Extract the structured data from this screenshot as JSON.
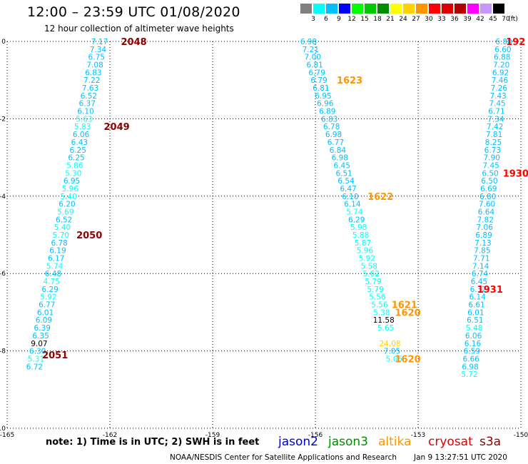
{
  "header": {
    "title": "12:00 – 23:59 UTC 01/08/2020",
    "subtitle": "12 hour collection of altimeter wave heights"
  },
  "colorbar": {
    "unit": "(ft)",
    "cells": [
      {
        "label": "3",
        "color": "#808080"
      },
      {
        "label": "6",
        "color": "#00ffff"
      },
      {
        "label": "9",
        "color": "#00bfff"
      },
      {
        "label": "12",
        "color": "#0000ff"
      },
      {
        "label": "15",
        "color": "#00ff00"
      },
      {
        "label": "18",
        "color": "#00c800"
      },
      {
        "label": "21",
        "color": "#008c00"
      },
      {
        "label": "24",
        "color": "#ffff00"
      },
      {
        "label": "27",
        "color": "#ffd200"
      },
      {
        "label": "30",
        "color": "#ff9600"
      },
      {
        "label": "33",
        "color": "#ff0000"
      },
      {
        "label": "36",
        "color": "#dc0000"
      },
      {
        "label": "39",
        "color": "#b40000"
      },
      {
        "label": "42",
        "color": "#ff00ff"
      },
      {
        "label": "45",
        "color": "#c896ff"
      },
      {
        "label": "70",
        "color": "#000000"
      }
    ]
  },
  "chart_data": {
    "type": "scatter",
    "title": "12:00 – 23:59 UTC 01/08/2020",
    "subtitle": "12 hour collection of altimeter wave heights",
    "xlim": [
      -165,
      -150
    ],
    "ylim": [
      -10,
      0
    ],
    "x_ticks": [
      "-165",
      "-162",
      "-159",
      "-156",
      "-153",
      "-150"
    ],
    "y_ticks": [
      "0",
      "-2",
      "-4",
      "-6",
      "-8",
      "-10"
    ],
    "grid": true,
    "tracks": [
      {
        "name": "track-west",
        "lon_start": -162.3,
        "lon_end": -164.2,
        "points": [
          {
            "lat": 0.0,
            "v": "7.17"
          },
          {
            "lat": -0.2,
            "v": "7.34"
          },
          {
            "lat": -0.4,
            "v": "6.75"
          },
          {
            "lat": -0.6,
            "v": "7.08"
          },
          {
            "lat": -0.8,
            "v": "6.83"
          },
          {
            "lat": -1.0,
            "v": "7.22"
          },
          {
            "lat": -1.2,
            "v": "7.63"
          },
          {
            "lat": -1.4,
            "v": "6.52"
          },
          {
            "lat": -1.6,
            "v": "6.37"
          },
          {
            "lat": -1.8,
            "v": "6.10"
          },
          {
            "lat": -2.0,
            "v": "5.63"
          },
          {
            "lat": -2.2,
            "v": "5.83"
          },
          {
            "lat": -2.4,
            "v": "6.06"
          },
          {
            "lat": -2.6,
            "v": "6.43"
          },
          {
            "lat": -2.8,
            "v": "6.25"
          },
          {
            "lat": -3.0,
            "v": "6.25"
          },
          {
            "lat": -3.2,
            "v": "5.86"
          },
          {
            "lat": -3.4,
            "v": "5.30"
          },
          {
            "lat": -3.6,
            "v": "6.95"
          },
          {
            "lat": -3.8,
            "v": "5.96"
          },
          {
            "lat": -4.0,
            "v": "5.40"
          },
          {
            "lat": -4.2,
            "v": "6.20"
          },
          {
            "lat": -4.4,
            "v": "5.69"
          },
          {
            "lat": -4.6,
            "v": "6.52"
          },
          {
            "lat": -4.8,
            "v": "5.40"
          },
          {
            "lat": -5.0,
            "v": "5.70"
          },
          {
            "lat": -5.2,
            "v": "6.78"
          },
          {
            "lat": -5.4,
            "v": "6.19"
          },
          {
            "lat": -5.6,
            "v": "6.17"
          },
          {
            "lat": -5.8,
            "v": "5.74"
          },
          {
            "lat": -6.0,
            "v": "6.48"
          },
          {
            "lat": -6.2,
            "v": "4.75"
          },
          {
            "lat": -6.4,
            "v": "6.29"
          },
          {
            "lat": -6.6,
            "v": "5.92"
          },
          {
            "lat": -6.8,
            "v": "6.77"
          },
          {
            "lat": -7.0,
            "v": "6.01"
          },
          {
            "lat": -7.2,
            "v": "6.09"
          },
          {
            "lat": -7.4,
            "v": "6.39"
          },
          {
            "lat": -7.6,
            "v": "6.35"
          },
          {
            "lat": -7.8,
            "v": "9.07"
          },
          {
            "lat": -8.0,
            "v": "6.30"
          },
          {
            "lat": -8.2,
            "v": "5.31"
          },
          {
            "lat": -8.4,
            "v": "6.72"
          }
        ],
        "time_labels": [
          {
            "lat": 0.0,
            "t": "2048",
            "lon": -161.3,
            "color": "#8b0000"
          },
          {
            "lat": -2.2,
            "t": "2049",
            "lon": -161.8,
            "color": "#8b0000"
          },
          {
            "lat": -5.0,
            "t": "2050",
            "lon": -162.6,
            "color": "#8b0000"
          },
          {
            "lat": -8.1,
            "t": "2051",
            "lon": -163.6,
            "color": "#8b0000"
          }
        ]
      },
      {
        "name": "track-middle",
        "lon_start": -156.2,
        "lon_end": -153.7,
        "points": [
          {
            "lat": 0.0,
            "v": "6.98"
          },
          {
            "lat": -0.2,
            "v": "7.21"
          },
          {
            "lat": -0.4,
            "v": "7.00"
          },
          {
            "lat": -0.6,
            "v": "6.81"
          },
          {
            "lat": -0.8,
            "v": "6.79"
          },
          {
            "lat": -1.0,
            "v": "6.79"
          },
          {
            "lat": -1.2,
            "v": "6.81"
          },
          {
            "lat": -1.4,
            "v": "6.95"
          },
          {
            "lat": -1.6,
            "v": "6.96"
          },
          {
            "lat": -1.8,
            "v": "6.89"
          },
          {
            "lat": -2.0,
            "v": "6.83"
          },
          {
            "lat": -2.2,
            "v": "6.78"
          },
          {
            "lat": -2.4,
            "v": "6.98"
          },
          {
            "lat": -2.6,
            "v": "6.77"
          },
          {
            "lat": -2.8,
            "v": "6.84"
          },
          {
            "lat": -3.0,
            "v": "6.98"
          },
          {
            "lat": -3.2,
            "v": "6.45"
          },
          {
            "lat": -3.4,
            "v": "6.51"
          },
          {
            "lat": -3.6,
            "v": "6.54"
          },
          {
            "lat": -3.8,
            "v": "6.47"
          },
          {
            "lat": -4.0,
            "v": "6.10"
          },
          {
            "lat": -4.2,
            "v": "6.14"
          },
          {
            "lat": -4.4,
            "v": "5.74"
          },
          {
            "lat": -4.6,
            "v": "6.29"
          },
          {
            "lat": -4.8,
            "v": "5.98"
          },
          {
            "lat": -5.0,
            "v": "5.88"
          },
          {
            "lat": -5.2,
            "v": "5.87"
          },
          {
            "lat": -5.4,
            "v": "5.96"
          },
          {
            "lat": -5.6,
            "v": "5.92"
          },
          {
            "lat": -5.8,
            "v": "5.58"
          },
          {
            "lat": -6.0,
            "v": "5.62"
          },
          {
            "lat": -6.2,
            "v": "5.79"
          },
          {
            "lat": -6.4,
            "v": "5.79"
          },
          {
            "lat": -6.6,
            "v": "5.56"
          },
          {
            "lat": -6.8,
            "v": "5.56"
          },
          {
            "lat": -7.0,
            "v": "5.38"
          },
          {
            "lat": -7.2,
            "v": "11.58"
          },
          {
            "lat": -7.4,
            "v": "5.65"
          },
          {
            "lat": -7.6,
            "v": ""
          },
          {
            "lat": -7.8,
            "v": "24.08"
          },
          {
            "lat": -8.0,
            "v": "7.05"
          },
          {
            "lat": -8.2,
            "v": "5.06"
          }
        ],
        "time_labels": [
          {
            "lat": -1.0,
            "t": "1623",
            "lon": -155.0,
            "color": "#ff9600"
          },
          {
            "lat": -4.0,
            "t": "1622",
            "lon": -154.1,
            "color": "#ff9600"
          },
          {
            "lat": -6.8,
            "t": "1621",
            "lon": -153.4,
            "color": "#ff9600"
          },
          {
            "lat": -7.0,
            "t": "1620",
            "lon": -153.3,
            "color": "#ff9600"
          },
          {
            "lat": -8.2,
            "t": "1620",
            "lon": -153.3,
            "color": "#ff9600"
          }
        ]
      },
      {
        "name": "track-east",
        "lon_start": -150.5,
        "lon_end": -151.5,
        "points": [
          {
            "lat": 0.0,
            "v": "6.80"
          },
          {
            "lat": -0.2,
            "v": "6.60"
          },
          {
            "lat": -0.4,
            "v": "6.88"
          },
          {
            "lat": -0.6,
            "v": "7.20"
          },
          {
            "lat": -0.8,
            "v": "6.92"
          },
          {
            "lat": -1.0,
            "v": "7.46"
          },
          {
            "lat": -1.2,
            "v": "7.26"
          },
          {
            "lat": -1.4,
            "v": "7.43"
          },
          {
            "lat": -1.6,
            "v": "7.45"
          },
          {
            "lat": -1.8,
            "v": "6.71"
          },
          {
            "lat": -2.0,
            "v": "7.34"
          },
          {
            "lat": -2.2,
            "v": "7.42"
          },
          {
            "lat": -2.4,
            "v": "7.81"
          },
          {
            "lat": -2.6,
            "v": "8.25"
          },
          {
            "lat": -2.8,
            "v": "6.73"
          },
          {
            "lat": -3.0,
            "v": "7.90"
          },
          {
            "lat": -3.2,
            "v": "7.45"
          },
          {
            "lat": -3.4,
            "v": "6.50"
          },
          {
            "lat": -3.6,
            "v": "6.50"
          },
          {
            "lat": -3.8,
            "v": "6.69"
          },
          {
            "lat": -4.0,
            "v": "6.80"
          },
          {
            "lat": -4.2,
            "v": "7.60"
          },
          {
            "lat": -4.4,
            "v": "6.64"
          },
          {
            "lat": -4.6,
            "v": "7.82"
          },
          {
            "lat": -4.8,
            "v": "7.06"
          },
          {
            "lat": -5.0,
            "v": "6.89"
          },
          {
            "lat": -5.2,
            "v": "7.13"
          },
          {
            "lat": -5.4,
            "v": "7.85"
          },
          {
            "lat": -5.6,
            "v": "7.71"
          },
          {
            "lat": -5.8,
            "v": "7.14"
          },
          {
            "lat": -6.0,
            "v": "6.74"
          },
          {
            "lat": -6.2,
            "v": "6.45"
          },
          {
            "lat": -6.4,
            "v": "6.32"
          },
          {
            "lat": -6.6,
            "v": "6.14"
          },
          {
            "lat": -6.8,
            "v": "6.61"
          },
          {
            "lat": -7.0,
            "v": "6.01"
          },
          {
            "lat": -7.2,
            "v": "6.51"
          },
          {
            "lat": -7.4,
            "v": "5.48"
          },
          {
            "lat": -7.6,
            "v": "6.06"
          },
          {
            "lat": -7.8,
            "v": "6.16"
          },
          {
            "lat": -8.0,
            "v": "6.59"
          },
          {
            "lat": -8.2,
            "v": "6.66"
          },
          {
            "lat": -8.4,
            "v": "6.98"
          },
          {
            "lat": -8.6,
            "v": "5.72"
          }
        ],
        "time_labels": [
          {
            "lat": 0.0,
            "t": "192",
            "lon": -150.15,
            "color": "#ff0000"
          },
          {
            "lat": -3.4,
            "t": "1930",
            "lon": -150.15,
            "color": "#ff0000"
          },
          {
            "lat": -6.4,
            "t": "1931",
            "lon": -150.9,
            "color": "#ff0000"
          }
        ]
      }
    ]
  },
  "footer": {
    "note": "note: 1) Time is in UTC; 2) SWH is in feet",
    "legend": [
      {
        "label": "jason2",
        "color": "#0000cc"
      },
      {
        "label": "jason3",
        "color": "#008c00"
      },
      {
        "label": "altika",
        "color": "#ff9600"
      },
      {
        "label": "cryosat",
        "color": "#dd0000"
      },
      {
        "label": "s3a",
        "color": "#8b0000"
      }
    ],
    "credit": "NOAA/NESDIS Center for Satellite Applications and Research",
    "timestamp": "Jan  9 13:27:51 UTC 2020"
  },
  "colors": {
    "wave_low": "#00bfff",
    "wave_very_low": "#00ffff",
    "wave_high_24": "#ffd200",
    "wave_black": "#000000"
  }
}
